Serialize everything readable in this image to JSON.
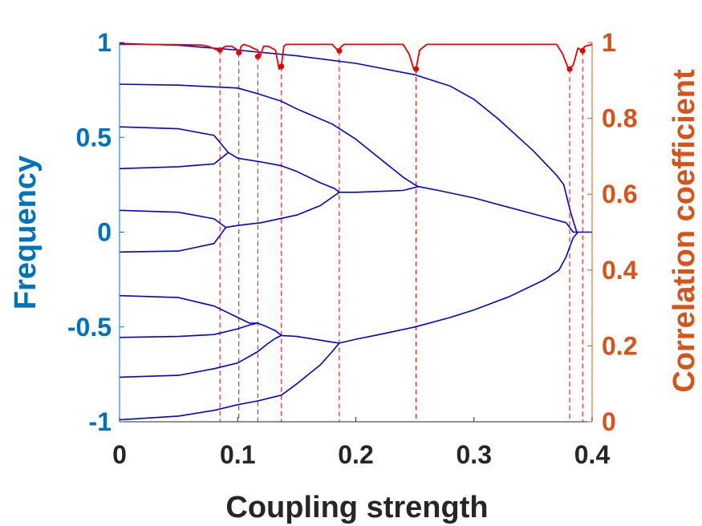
{
  "chart_data": {
    "type": "line",
    "title": "",
    "xlabel": "Coupling strength",
    "ylabel_left": "Frequency",
    "ylabel_right": "Correlation coefficient",
    "xlim": [
      0,
      0.4
    ],
    "ylim_left": [
      -1,
      1
    ],
    "ylim_right": [
      0,
      1
    ],
    "xticks": [
      0,
      0.1,
      0.2,
      0.3,
      0.4
    ],
    "xtick_labels": [
      "0",
      "0.1",
      "0.2",
      "0.3",
      "0.4"
    ],
    "yticks_left": [
      -1,
      -0.5,
      0,
      0.5,
      1
    ],
    "ytick_labels_left": [
      "-1",
      "-0.5",
      "0",
      "0.5",
      "1"
    ],
    "yticks_right": [
      0,
      0.2,
      0.4,
      0.6,
      0.8,
      1
    ],
    "ytick_labels_right": [
      "0",
      "0.2",
      "0.4",
      "0.6",
      "0.8",
      "1"
    ],
    "grid": false,
    "colors": {
      "frequency": "#0000dd",
      "correlation": "#ee0000",
      "left_axis": "#0072BD",
      "right_axis": "#D95319",
      "x_axis": "#262626"
    },
    "frequency_series": [
      {
        "x": [
          0,
          0.05,
          0.1,
          0.15,
          0.2,
          0.25,
          0.28,
          0.3,
          0.32,
          0.35,
          0.37,
          0.376,
          0.382,
          0.387,
          0.4
        ],
        "y": [
          0.995,
          0.985,
          0.96,
          0.93,
          0.89,
          0.83,
          0.77,
          0.7,
          0.6,
          0.43,
          0.3,
          0.25,
          0.1,
          0.0,
          0.0
        ]
      },
      {
        "x": [
          0,
          0.05,
          0.1,
          0.117,
          0.137,
          0.15,
          0.18,
          0.2,
          0.22,
          0.24,
          0.25,
          0.253
        ],
        "y": [
          0.78,
          0.775,
          0.76,
          0.73,
          0.69,
          0.65,
          0.57,
          0.49,
          0.39,
          0.29,
          0.25,
          0.24
        ]
      },
      {
        "x": [
          0,
          0.05,
          0.08,
          0.092
        ],
        "y": [
          0.555,
          0.545,
          0.51,
          0.42
        ]
      },
      {
        "x": [
          0,
          0.05,
          0.08,
          0.092
        ],
        "y": [
          0.335,
          0.345,
          0.36,
          0.42
        ]
      },
      {
        "x": [
          0.092,
          0.1,
          0.12,
          0.137,
          0.15,
          0.17,
          0.182,
          0.186
        ],
        "y": [
          0.42,
          0.39,
          0.37,
          0.35,
          0.32,
          0.26,
          0.23,
          0.21
        ]
      },
      {
        "x": [
          0.186,
          0.2,
          0.22,
          0.24,
          0.253,
          0.27,
          0.3,
          0.33,
          0.36,
          0.378,
          0.384,
          0.388
        ],
        "y": [
          0.21,
          0.21,
          0.215,
          0.22,
          0.24,
          0.22,
          0.18,
          0.13,
          0.08,
          0.05,
          0.0,
          0.0
        ]
      },
      {
        "x": [
          0,
          0.05,
          0.08,
          0.09
        ],
        "y": [
          0.115,
          0.105,
          0.07,
          0.025
        ]
      },
      {
        "x": [
          0,
          0.05,
          0.08,
          0.09
        ],
        "y": [
          -0.105,
          -0.1,
          -0.06,
          0.025
        ]
      },
      {
        "x": [
          0.09,
          0.1,
          0.12,
          0.15,
          0.17,
          0.186
        ],
        "y": [
          0.025,
          0.035,
          0.05,
          0.09,
          0.14,
          0.21
        ]
      },
      {
        "x": [
          0,
          0.05,
          0.08,
          0.1,
          0.11,
          0.117
        ],
        "y": [
          -0.335,
          -0.345,
          -0.39,
          -0.45,
          -0.48,
          -0.48
        ]
      },
      {
        "x": [
          0,
          0.05,
          0.08,
          0.1,
          0.11,
          0.117
        ],
        "y": [
          -0.555,
          -0.55,
          -0.54,
          -0.51,
          -0.49,
          -0.48
        ]
      },
      {
        "x": [
          0.117,
          0.125,
          0.132,
          0.137
        ],
        "y": [
          -0.48,
          -0.5,
          -0.52,
          -0.545
        ]
      },
      {
        "x": [
          0,
          0.05,
          0.08,
          0.1,
          0.117,
          0.125,
          0.132,
          0.137
        ],
        "y": [
          -0.765,
          -0.755,
          -0.72,
          -0.69,
          -0.63,
          -0.59,
          -0.56,
          -0.545
        ]
      },
      {
        "x": [
          0.137,
          0.15,
          0.165,
          0.18,
          0.186
        ],
        "y": [
          -0.545,
          -0.55,
          -0.565,
          -0.58,
          -0.585
        ]
      },
      {
        "x": [
          0,
          0.05,
          0.08,
          0.1,
          0.117,
          0.13,
          0.137,
          0.15,
          0.17,
          0.18,
          0.186
        ],
        "y": [
          -0.99,
          -0.97,
          -0.94,
          -0.91,
          -0.89,
          -0.87,
          -0.86,
          -0.8,
          -0.7,
          -0.63,
          -0.585
        ]
      },
      {
        "x": [
          0.186,
          0.2,
          0.22,
          0.25,
          0.28,
          0.3,
          0.33,
          0.36,
          0.372,
          0.378,
          0.384,
          0.388
        ],
        "y": [
          -0.585,
          -0.565,
          -0.54,
          -0.5,
          -0.45,
          -0.41,
          -0.34,
          -0.25,
          -0.2,
          -0.13,
          -0.03,
          0.0
        ]
      }
    ],
    "correlation_series": {
      "x": [
        0,
        0.02,
        0.05,
        0.07,
        0.075,
        0.083,
        0.085,
        0.087,
        0.09,
        0.095,
        0.1,
        0.101,
        0.103,
        0.105,
        0.11,
        0.113,
        0.117,
        0.119,
        0.122,
        0.126,
        0.132,
        0.135,
        0.137,
        0.139,
        0.141,
        0.145,
        0.18,
        0.183,
        0.185,
        0.188,
        0.19,
        0.24,
        0.245,
        0.249,
        0.251,
        0.254,
        0.26,
        0.37,
        0.375,
        0.38,
        0.384,
        0.388,
        0.391,
        0.394,
        0.4
      ],
      "y": [
        0.995,
        0.995,
        0.994,
        0.993,
        0.99,
        0.98,
        0.977,
        0.985,
        0.99,
        0.99,
        0.98,
        0.973,
        0.99,
        0.995,
        0.99,
        0.985,
        0.98,
        0.963,
        0.99,
        0.99,
        0.98,
        0.93,
        0.937,
        0.99,
        0.995,
        0.995,
        0.995,
        0.985,
        0.978,
        0.99,
        0.995,
        0.995,
        0.97,
        0.93,
        0.93,
        0.98,
        0.995,
        0.995,
        0.97,
        0.93,
        0.94,
        0.985,
        0.98,
        0.99,
        0.995
      ]
    },
    "correlation_markers": {
      "x": [
        0.085,
        0.101,
        0.117,
        0.137,
        0.186,
        0.251,
        0.381,
        0.392
      ],
      "y": [
        0.98,
        0.973,
        0.963,
        0.937,
        0.978,
        0.93,
        0.93,
        0.978
      ]
    },
    "vertical_lines_x": [
      0.085,
      0.101,
      0.117,
      0.137,
      0.186,
      0.251,
      0.381,
      0.392
    ]
  }
}
